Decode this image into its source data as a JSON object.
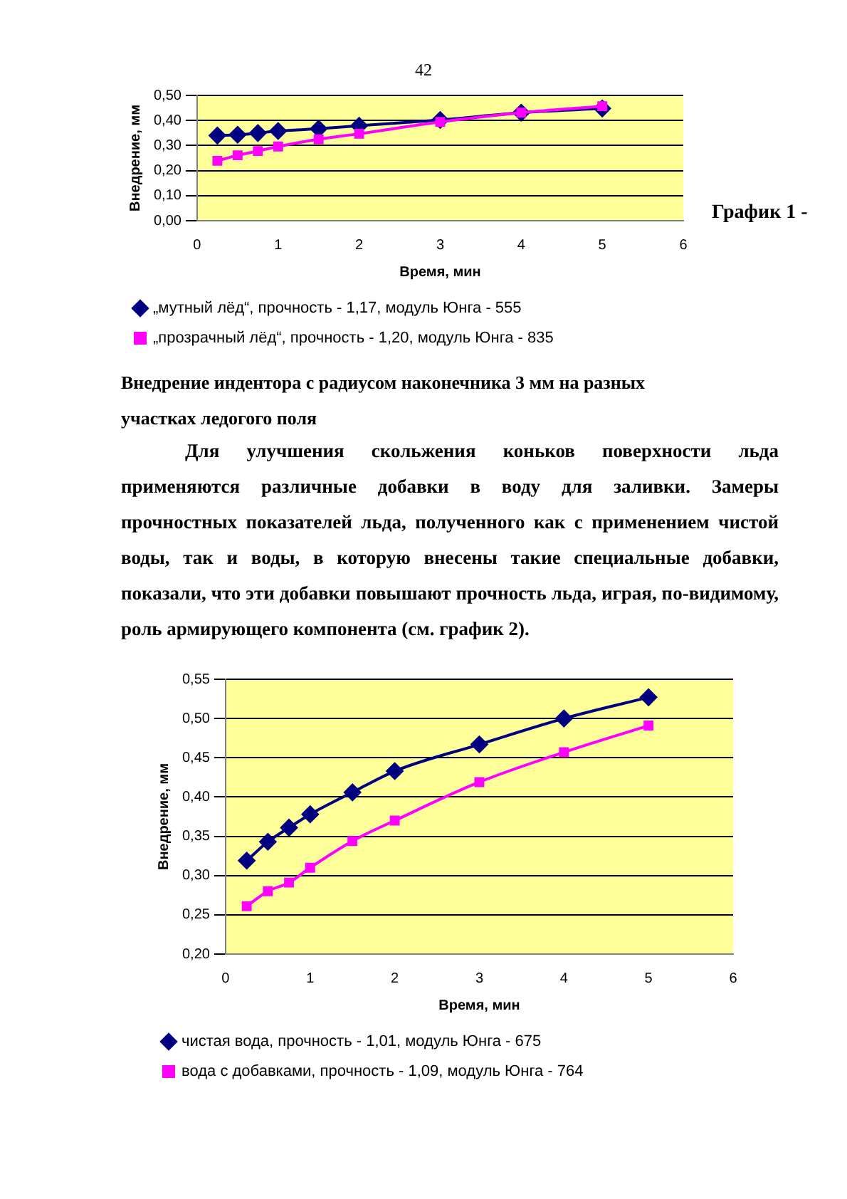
{
  "chart_data": [
    {
      "type": "line",
      "xlabel": "Время, мин",
      "ylabel": "Внедрение, мм",
      "annotations": [
        "42",
        "График 1 -",
        "Внедрение индентора с радиусом наконечника 3 мм на разных участках ледогого поля"
      ],
      "x": [
        0.25,
        0.5,
        0.75,
        1,
        1.5,
        2,
        3,
        4,
        5
      ],
      "series": [
        {
          "name": "„мутный лёд“, прочность - 1,17, модуль Юнга - 555",
          "color": "#000080",
          "marker": "diamond",
          "values": [
            0.34,
            0.343,
            0.35,
            0.358,
            0.367,
            0.379,
            0.402,
            0.431,
            0.448
          ]
        },
        {
          "name": "„прозрачный лёд“, прочность - 1,20, модуль Юнга - 835",
          "color": "#ff00ff",
          "marker": "square",
          "values": [
            0.239,
            0.261,
            0.278,
            0.296,
            0.325,
            0.347,
            0.394,
            0.431,
            0.457
          ]
        }
      ],
      "xlim": [
        0,
        6
      ],
      "xticks": [
        0,
        1,
        2,
        3,
        4,
        5,
        6
      ],
      "ylim": [
        0,
        0.5
      ],
      "yticks": [
        {
          "value": 0,
          "label": "0,00"
        },
        {
          "value": 0.1,
          "label": "0,10"
        },
        {
          "value": 0.2,
          "label": "0,20"
        },
        {
          "value": 0.3,
          "label": "0,30"
        },
        {
          "value": 0.4,
          "label": "0,40"
        },
        {
          "value": 0.5,
          "label": "0,50"
        }
      ],
      "grid": "y",
      "legend": "bottom",
      "line_style": "solid"
    },
    {
      "type": "line",
      "xlabel": "Время, мин",
      "ylabel": "Внедрение, мм",
      "annotations": [
        "Для улучшения скольжения коньков поверхности льда применяются различные добавки в воду для заливки. Замеры прочностных показателей льда, полученного как с применением чистой воды, так и воды, в которую внесены такие специальные добавки, показали, что эти добавки повышают прочность льда, играя, по-видимому, роль армирующего компонента (см. график 2)."
      ],
      "x": [
        0.25,
        0.5,
        0.75,
        1,
        1.5,
        2,
        3,
        4,
        5
      ],
      "series": [
        {
          "name": "чистая вода, прочность - 1,01, модуль Юнга - 675",
          "color": "#000080",
          "marker": "diamond",
          "values": [
            0.319,
            0.343,
            0.361,
            0.378,
            0.406,
            0.433,
            0.467,
            0.5,
            0.527
          ]
        },
        {
          "name": "вода с добавками, прочность - 1,09, модуль Юнга - 764",
          "color": "#ff00ff",
          "marker": "square",
          "values": [
            0.261,
            0.28,
            0.291,
            0.31,
            0.344,
            0.37,
            0.419,
            0.457,
            0.491
          ]
        }
      ],
      "xlim": [
        0,
        6
      ],
      "xticks": [
        0,
        1,
        2,
        3,
        4,
        5,
        6
      ],
      "ylim": [
        0.2,
        0.55
      ],
      "yticks": [
        {
          "value": 0.2,
          "label": "0,20"
        },
        {
          "value": 0.25,
          "label": "0,25"
        },
        {
          "value": 0.3,
          "label": "0,30"
        },
        {
          "value": 0.35,
          "label": "0,35"
        },
        {
          "value": 0.4,
          "label": "0,40"
        },
        {
          "value": 0.45,
          "label": "0,45"
        },
        {
          "value": 0.5,
          "label": "0,50"
        },
        {
          "value": 0.55,
          "label": "0,55"
        }
      ],
      "grid": "y",
      "legend": "bottom",
      "line_style": "solid"
    }
  ]
}
